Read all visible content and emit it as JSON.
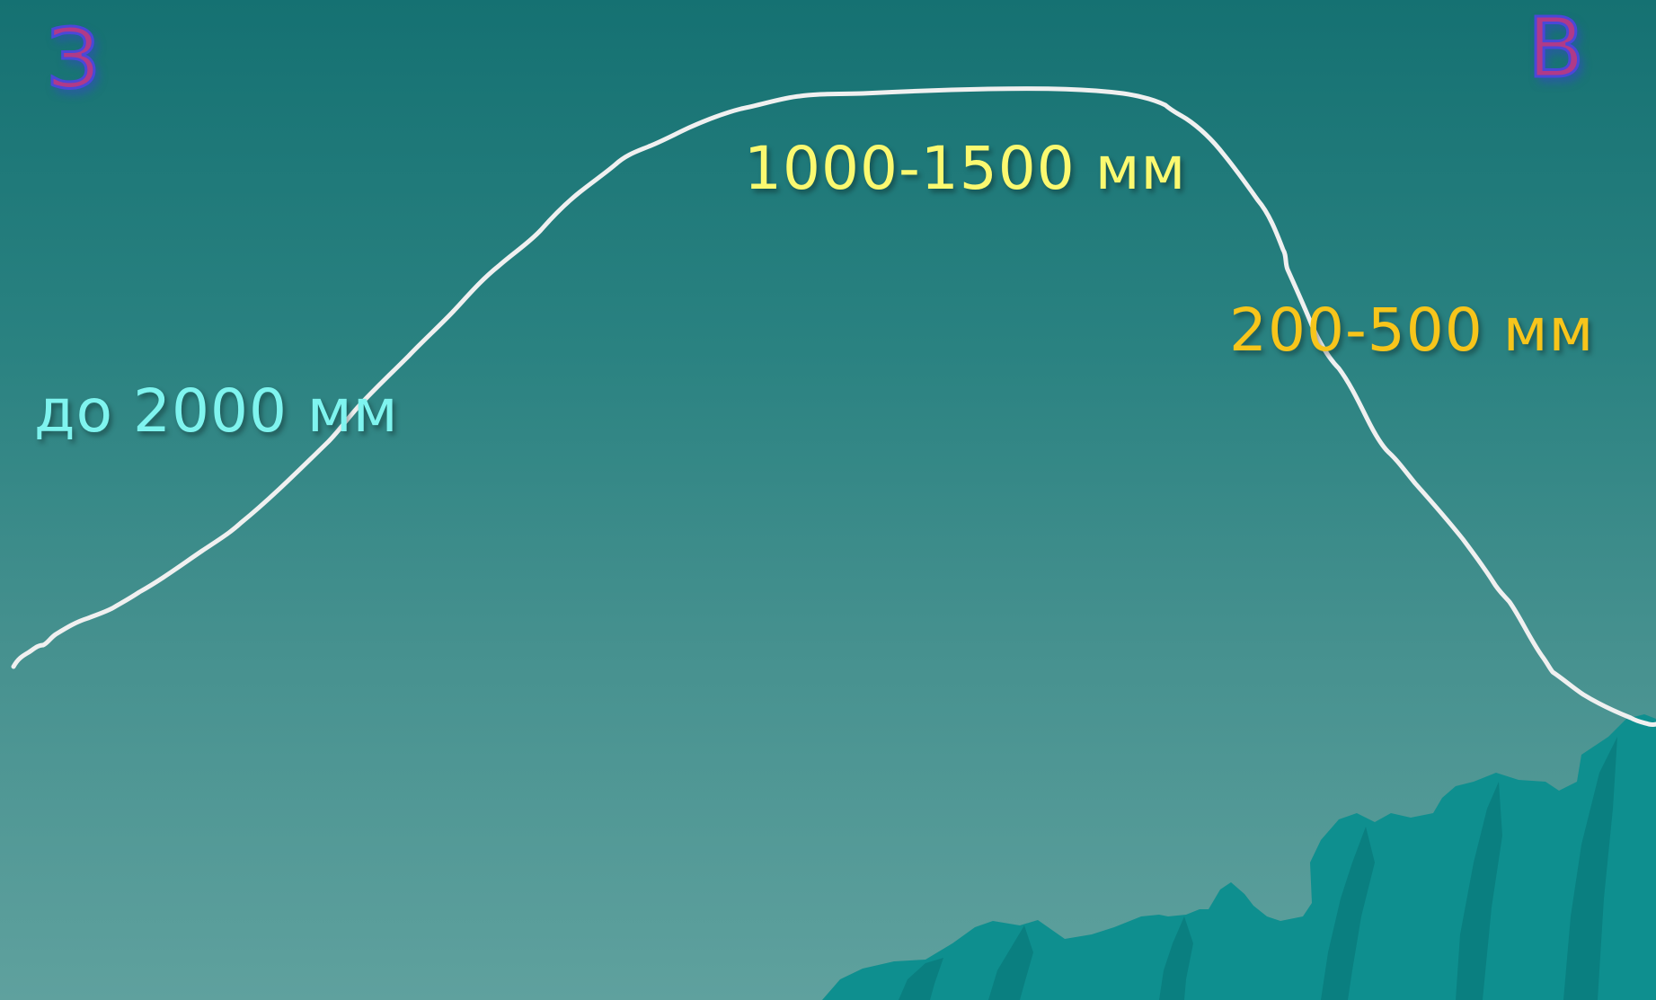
{
  "directions": {
    "west": "З",
    "east": "В"
  },
  "precipitation_labels": {
    "west": "до 2000 мм",
    "center": "1000-1500 мм",
    "east": "200-500 мм"
  },
  "colors": {
    "background_top": "#157172",
    "background_bottom": "#5fa19e",
    "profile_line": "#f0f0f0",
    "west_label": "#7ff4ef",
    "center_label": "#fbf970",
    "east_label": "#f7c51b",
    "direction_letters": "#b03a88",
    "mountains": "#0e8f8f"
  }
}
